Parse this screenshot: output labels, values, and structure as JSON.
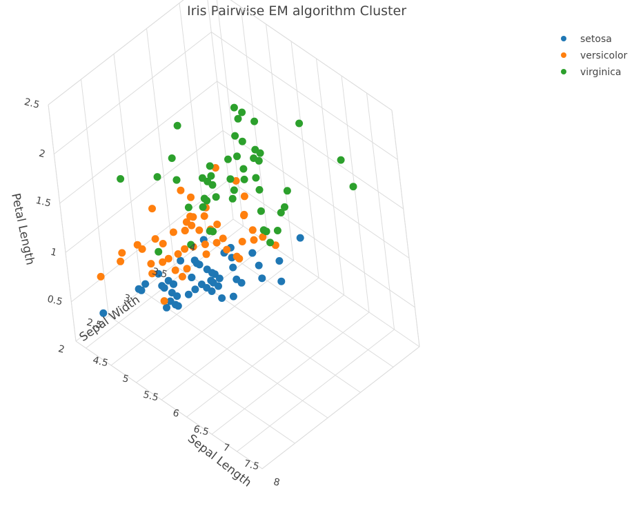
{
  "chart_data": {
    "type": "scatter",
    "title": "Iris Pairwise EM algorithm  Cluster",
    "axes": {
      "x": {
        "label": "Sepal Length",
        "ticks": [
          "4.5",
          "5",
          "5.5",
          "6",
          "6.5",
          "7",
          "7.5",
          "8"
        ],
        "range": [
          4.3,
          8.0
        ]
      },
      "y": {
        "label": "Sepal Width",
        "ticks": [
          "2",
          "2.5",
          "3",
          "3.5",
          "4"
        ],
        "range": [
          2.0,
          4.4
        ]
      },
      "z": {
        "label": "Petal Length",
        "ticks": [
          "0.5",
          "1",
          "1.5",
          "2",
          "2.5"
        ],
        "range": [
          0.1,
          2.5
        ]
      }
    },
    "grid": true,
    "legend_position": "top-right",
    "series": [
      {
        "name": "setosa",
        "color": "#1f77b4",
        "points": [
          [
            5.1,
            3.5,
            0.2
          ],
          [
            4.9,
            3.0,
            0.2
          ],
          [
            4.7,
            3.2,
            0.2
          ],
          [
            4.6,
            3.1,
            0.2
          ],
          [
            5.0,
            3.6,
            0.2
          ],
          [
            5.4,
            3.9,
            0.4
          ],
          [
            4.6,
            3.4,
            0.3
          ],
          [
            5.0,
            3.4,
            0.2
          ],
          [
            4.4,
            2.9,
            0.2
          ],
          [
            4.9,
            3.1,
            0.1
          ],
          [
            5.4,
            3.7,
            0.2
          ],
          [
            4.8,
            3.4,
            0.2
          ],
          [
            4.8,
            3.0,
            0.1
          ],
          [
            4.3,
            3.0,
            0.1
          ],
          [
            5.8,
            4.0,
            0.2
          ],
          [
            5.7,
            4.4,
            0.4
          ],
          [
            5.4,
            3.9,
            0.4
          ],
          [
            5.1,
            3.5,
            0.3
          ],
          [
            5.7,
            3.8,
            0.3
          ],
          [
            5.1,
            3.8,
            0.3
          ],
          [
            5.4,
            3.4,
            0.2
          ],
          [
            5.1,
            3.7,
            0.4
          ],
          [
            4.6,
            3.6,
            0.2
          ],
          [
            5.1,
            3.3,
            0.5
          ],
          [
            4.8,
            3.4,
            0.2
          ],
          [
            5.0,
            3.0,
            0.2
          ],
          [
            5.0,
            3.4,
            0.4
          ],
          [
            5.2,
            3.5,
            0.2
          ],
          [
            5.2,
            3.4,
            0.2
          ],
          [
            4.7,
            3.2,
            0.2
          ],
          [
            4.8,
            3.1,
            0.2
          ],
          [
            5.4,
            3.4,
            0.4
          ],
          [
            5.2,
            4.1,
            0.1
          ],
          [
            5.5,
            4.2,
            0.2
          ],
          [
            4.9,
            3.1,
            0.2
          ],
          [
            5.0,
            3.2,
            0.2
          ],
          [
            5.5,
            3.5,
            0.2
          ],
          [
            4.9,
            3.6,
            0.1
          ],
          [
            4.4,
            3.0,
            0.2
          ],
          [
            5.1,
            3.4,
            0.2
          ],
          [
            5.0,
            3.5,
            0.3
          ],
          [
            4.5,
            2.3,
            0.3
          ],
          [
            4.4,
            3.2,
            0.2
          ],
          [
            5.0,
            3.5,
            0.6
          ],
          [
            5.1,
            3.8,
            0.4
          ],
          [
            4.8,
            3.0,
            0.3
          ],
          [
            5.1,
            3.8,
            0.2
          ],
          [
            4.6,
            3.2,
            0.2
          ],
          [
            5.3,
            3.7,
            0.2
          ],
          [
            5.0,
            3.3,
            0.2
          ]
        ]
      },
      {
        "name": "versicolor",
        "color": "#ff7f0e",
        "points": [
          [
            7.0,
            3.2,
            1.4
          ],
          [
            6.4,
            3.2,
            1.5
          ],
          [
            6.9,
            3.1,
            1.5
          ],
          [
            5.5,
            2.3,
            1.3
          ],
          [
            6.5,
            2.8,
            1.5
          ],
          [
            5.7,
            2.8,
            1.3
          ],
          [
            6.3,
            3.3,
            1.6
          ],
          [
            4.9,
            2.4,
            1.0
          ],
          [
            6.6,
            2.9,
            1.3
          ],
          [
            5.2,
            2.7,
            1.4
          ],
          [
            5.0,
            2.0,
            1.0
          ],
          [
            5.9,
            3.0,
            1.5
          ],
          [
            6.0,
            2.2,
            1.0
          ],
          [
            6.1,
            2.9,
            1.4
          ],
          [
            5.6,
            2.9,
            1.3
          ],
          [
            6.7,
            3.1,
            1.4
          ],
          [
            5.6,
            3.0,
            1.5
          ],
          [
            5.8,
            2.7,
            1.0
          ],
          [
            6.2,
            2.2,
            1.5
          ],
          [
            5.6,
            2.5,
            1.1
          ],
          [
            5.9,
            3.2,
            1.8
          ],
          [
            6.1,
            2.8,
            1.3
          ],
          [
            6.3,
            2.5,
            1.5
          ],
          [
            6.1,
            2.8,
            1.2
          ],
          [
            6.4,
            2.9,
            1.3
          ],
          [
            6.6,
            3.0,
            1.4
          ],
          [
            6.8,
            2.8,
            1.4
          ],
          [
            6.7,
            3.0,
            1.7
          ],
          [
            6.0,
            2.9,
            1.5
          ],
          [
            5.7,
            2.6,
            1.0
          ],
          [
            5.5,
            2.4,
            1.1
          ],
          [
            5.5,
            2.4,
            1.0
          ],
          [
            5.8,
            2.7,
            1.2
          ],
          [
            6.0,
            2.7,
            1.6
          ],
          [
            5.4,
            3.0,
            1.5
          ],
          [
            6.0,
            3.4,
            1.6
          ],
          [
            6.7,
            3.1,
            1.5
          ],
          [
            6.3,
            2.3,
            1.3
          ],
          [
            5.6,
            3.0,
            1.3
          ],
          [
            5.5,
            2.5,
            1.3
          ],
          [
            5.5,
            2.6,
            1.2
          ],
          [
            6.1,
            3.0,
            1.4
          ],
          [
            5.8,
            2.6,
            1.2
          ],
          [
            5.0,
            2.3,
            1.0
          ],
          [
            5.6,
            2.7,
            1.3
          ],
          [
            5.7,
            3.0,
            1.2
          ],
          [
            5.7,
            2.9,
            1.3
          ],
          [
            6.2,
            2.9,
            1.3
          ],
          [
            5.1,
            2.5,
            1.1
          ],
          [
            5.7,
            2.8,
            1.3
          ]
        ]
      },
      {
        "name": "virginica",
        "color": "#2ca02c",
        "points": [
          [
            6.3,
            3.3,
            2.5
          ],
          [
            5.8,
            2.7,
            1.9
          ],
          [
            7.1,
            3.0,
            2.1
          ],
          [
            6.3,
            2.9,
            1.8
          ],
          [
            6.5,
            3.0,
            2.2
          ],
          [
            7.6,
            3.0,
            2.1
          ],
          [
            4.9,
            2.5,
            1.7
          ],
          [
            7.3,
            2.9,
            1.8
          ],
          [
            6.7,
            2.5,
            1.8
          ],
          [
            7.2,
            3.6,
            2.5
          ],
          [
            6.5,
            3.2,
            2.0
          ],
          [
            6.4,
            2.7,
            1.9
          ],
          [
            6.8,
            3.0,
            2.1
          ],
          [
            5.7,
            2.5,
            2.0
          ],
          [
            5.8,
            2.8,
            2.4
          ],
          [
            6.4,
            3.2,
            2.3
          ],
          [
            6.5,
            3.0,
            1.8
          ],
          [
            7.7,
            3.8,
            2.2
          ],
          [
            7.7,
            2.6,
            2.3
          ],
          [
            6.0,
            2.2,
            1.5
          ],
          [
            6.9,
            3.2,
            2.3
          ],
          [
            5.6,
            2.8,
            2.0
          ],
          [
            7.7,
            2.8,
            2.0
          ],
          [
            6.3,
            2.7,
            1.8
          ],
          [
            6.7,
            3.3,
            2.1
          ],
          [
            7.2,
            3.2,
            1.8
          ],
          [
            6.2,
            2.8,
            1.8
          ],
          [
            6.1,
            3.0,
            1.8
          ],
          [
            6.4,
            2.8,
            2.1
          ],
          [
            7.2,
            3.0,
            1.6
          ],
          [
            7.4,
            2.8,
            1.9
          ],
          [
            7.9,
            3.8,
            2.0
          ],
          [
            6.4,
            2.8,
            2.2
          ],
          [
            6.3,
            2.8,
            1.5
          ],
          [
            6.1,
            2.6,
            1.4
          ],
          [
            7.7,
            3.0,
            2.3
          ],
          [
            6.3,
            3.4,
            2.4
          ],
          [
            6.4,
            3.1,
            1.8
          ],
          [
            6.0,
            3.0,
            1.8
          ],
          [
            6.9,
            3.1,
            2.1
          ],
          [
            6.7,
            3.1,
            2.4
          ],
          [
            6.9,
            3.1,
            2.3
          ],
          [
            5.8,
            2.7,
            1.9
          ],
          [
            6.8,
            3.2,
            2.3
          ],
          [
            6.7,
            3.3,
            2.5
          ],
          [
            6.7,
            3.0,
            2.3
          ],
          [
            6.3,
            2.5,
            1.9
          ],
          [
            6.5,
            3.0,
            2.0
          ],
          [
            6.2,
            3.4,
            2.3
          ],
          [
            5.9,
            3.0,
            1.8
          ]
        ]
      }
    ]
  }
}
